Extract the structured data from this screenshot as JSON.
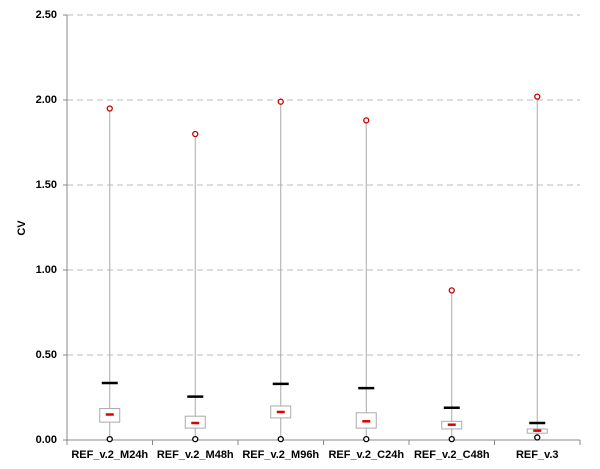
{
  "chart_data": {
    "type": "box",
    "y_label": "CV",
    "categories": [
      "REF_v.2_M24h",
      "REF_v.2_M48h",
      "REF_v.2_M96h",
      "REF_v.2_C24h",
      "REF_v.2_C48h",
      "REF_v.3"
    ],
    "boxes": [
      {
        "min": 0.005,
        "q1": 0.105,
        "median": 0.15,
        "q3": 0.185,
        "upper": 0.335,
        "max": 1.95
      },
      {
        "min": 0.005,
        "q1": 0.07,
        "median": 0.1,
        "q3": 0.14,
        "upper": 0.255,
        "max": 1.8
      },
      {
        "min": 0.005,
        "q1": 0.13,
        "median": 0.165,
        "q3": 0.2,
        "upper": 0.33,
        "max": 1.99
      },
      {
        "min": 0.005,
        "q1": 0.07,
        "median": 0.11,
        "q3": 0.16,
        "upper": 0.305,
        "max": 1.88
      },
      {
        "min": 0.005,
        "q1": 0.065,
        "median": 0.09,
        "q3": 0.11,
        "upper": 0.19,
        "max": 0.88
      },
      {
        "min": 0.015,
        "q1": 0.04,
        "median": 0.055,
        "q3": 0.065,
        "upper": 0.1,
        "max": 2.02
      }
    ],
    "median_color": "#e00000",
    "max_color": "#c00000",
    "upper_color": "#000000",
    "box_color": "#aaaaaa",
    "ylim": [
      0,
      2.5
    ],
    "yticks": [
      {
        "value": 0,
        "label": "0.00"
      },
      {
        "value": 0.5,
        "label": "0.50"
      },
      {
        "value": 1,
        "label": "1.00"
      },
      {
        "value": 1.5,
        "label": "1.50"
      },
      {
        "value": 2,
        "label": "2.00"
      },
      {
        "value": 2.5,
        "label": "2.50"
      }
    ],
    "grid": true
  }
}
